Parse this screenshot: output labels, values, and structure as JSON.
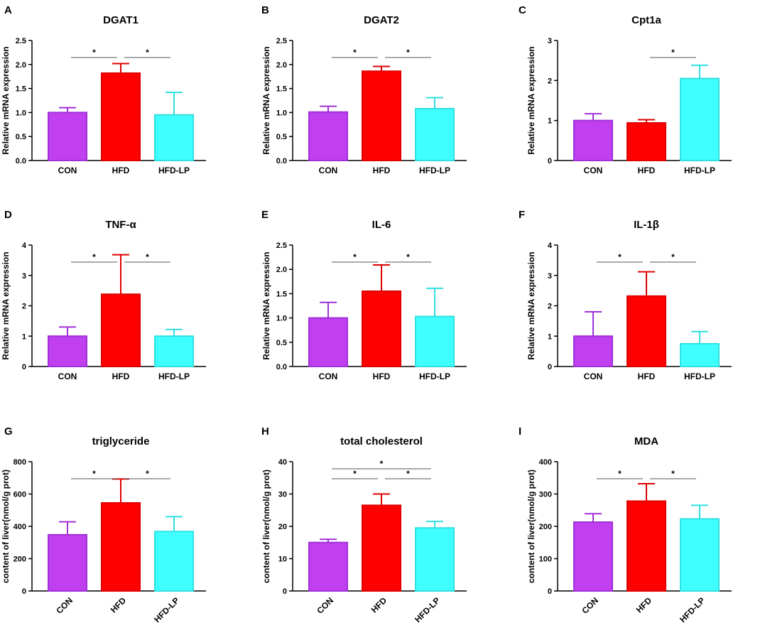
{
  "chart_data": [
    {
      "type": "bar",
      "panel": "A",
      "title": "DGAT1",
      "ylabel": "Relative mRNA expression",
      "categories": [
        "CON",
        "HFD",
        "HFD-LP"
      ],
      "values": [
        1.0,
        1.82,
        0.95
      ],
      "errors": [
        0.1,
        0.2,
        0.47
      ],
      "colors": [
        "#c040f0",
        "#ff0000",
        "#40ffff"
      ],
      "edge_colors": [
        "#a030d8",
        "#e00000",
        "#30e0e0"
      ],
      "ylim": [
        0,
        2.5
      ],
      "yticks": [
        {
          "value": 0,
          "label": "0.0"
        },
        0.5,
        {
          "value": 1,
          "label": "1.0"
        },
        1.5,
        {
          "value": 2,
          "label": "2.0"
        },
        2.5
      ],
      "significance": [
        {
          "groups": [
            "CON",
            "HFD"
          ],
          "label": "*"
        },
        {
          "groups": [
            "HFD",
            "HFD-LP"
          ],
          "label": "*"
        }
      ],
      "xlabel_rotation": 0
    },
    {
      "type": "bar",
      "panel": "B",
      "title": "DGAT2",
      "ylabel": "Relative mRNA expression",
      "categories": [
        "CON",
        "HFD",
        "HFD-LP"
      ],
      "values": [
        1.01,
        1.86,
        1.08
      ],
      "errors": [
        0.12,
        0.1,
        0.23
      ],
      "colors": [
        "#c040f0",
        "#ff0000",
        "#40ffff"
      ],
      "edge_colors": [
        "#a030d8",
        "#e00000",
        "#30e0e0"
      ],
      "ylim": [
        0,
        2.5
      ],
      "yticks": [
        {
          "value": 0,
          "label": "0.0"
        },
        0.5,
        {
          "value": 1,
          "label": "1.0"
        },
        1.5,
        {
          "value": 2,
          "label": "2.0"
        },
        2.5
      ],
      "significance": [
        {
          "groups": [
            "CON",
            "HFD"
          ],
          "label": "*"
        },
        {
          "groups": [
            "HFD",
            "HFD-LP"
          ],
          "label": "*"
        }
      ],
      "xlabel_rotation": 0
    },
    {
      "type": "bar",
      "panel": "C",
      "title": "Cpt1a",
      "ylabel": "Relative mRNA expression",
      "categories": [
        "CON",
        "HFD",
        "HFD-LP"
      ],
      "values": [
        1.0,
        0.94,
        2.05
      ],
      "errors": [
        0.17,
        0.08,
        0.33
      ],
      "colors": [
        "#c040f0",
        "#ff0000",
        "#40ffff"
      ],
      "edge_colors": [
        "#a030d8",
        "#e00000",
        "#30e0e0"
      ],
      "ylim": [
        0,
        3
      ],
      "yticks": [
        0,
        1,
        2,
        3
      ],
      "significance": [
        {
          "groups": [
            "HFD",
            "HFD-LP"
          ],
          "label": "*"
        }
      ],
      "xlabel_rotation": 0
    },
    {
      "type": "bar",
      "panel": "D",
      "title": "TNF-α",
      "ylabel": "Relative mRNA expression",
      "categories": [
        "CON",
        "HFD",
        "HFD-LP"
      ],
      "values": [
        1.0,
        2.38,
        1.0
      ],
      "errors": [
        0.3,
        1.3,
        0.22
      ],
      "colors": [
        "#c040f0",
        "#ff0000",
        "#40ffff"
      ],
      "edge_colors": [
        "#a030d8",
        "#e00000",
        "#30e0e0"
      ],
      "ylim": [
        0,
        4
      ],
      "yticks": [
        0,
        1,
        2,
        3,
        4
      ],
      "significance": [
        {
          "groups": [
            "CON",
            "HFD"
          ],
          "label": "*"
        },
        {
          "groups": [
            "HFD",
            "HFD-LP"
          ],
          "label": "*"
        }
      ],
      "xlabel_rotation": 0
    },
    {
      "type": "bar",
      "panel": "E",
      "title": "IL-6",
      "ylabel": "Relative mRNA expression",
      "categories": [
        "CON",
        "HFD",
        "HFD-LP"
      ],
      "values": [
        1.0,
        1.55,
        1.03
      ],
      "errors": [
        0.32,
        0.54,
        0.58
      ],
      "colors": [
        "#c040f0",
        "#ff0000",
        "#40ffff"
      ],
      "edge_colors": [
        "#a030d8",
        "#e00000",
        "#30e0e0"
      ],
      "ylim": [
        0,
        2.5
      ],
      "yticks": [
        {
          "value": 0,
          "label": "0.0"
        },
        0.5,
        {
          "value": 1,
          "label": "1.0"
        },
        1.5,
        {
          "value": 2,
          "label": "2.0"
        },
        2.5
      ],
      "significance": [
        {
          "groups": [
            "CON",
            "HFD"
          ],
          "label": "*"
        },
        {
          "groups": [
            "HFD",
            "HFD-LP"
          ],
          "label": "*"
        }
      ],
      "xlabel_rotation": 0
    },
    {
      "type": "bar",
      "panel": "F",
      "title": "IL-1β",
      "ylabel": "Relative mRNA expression",
      "categories": [
        "CON",
        "HFD",
        "HFD-LP"
      ],
      "values": [
        1.0,
        2.32,
        0.75
      ],
      "errors": [
        0.8,
        0.8,
        0.4
      ],
      "colors": [
        "#c040f0",
        "#ff0000",
        "#40ffff"
      ],
      "edge_colors": [
        "#a030d8",
        "#e00000",
        "#30e0e0"
      ],
      "ylim": [
        0,
        4
      ],
      "yticks": [
        0,
        1,
        2,
        3,
        4
      ],
      "significance": [
        {
          "groups": [
            "CON",
            "HFD"
          ],
          "label": "*"
        },
        {
          "groups": [
            "HFD",
            "HFD-LP"
          ],
          "label": "*"
        }
      ],
      "xlabel_rotation": 0
    },
    {
      "type": "bar",
      "panel": "G",
      "title": "triglyceride",
      "ylabel": "content of liver(nmol/g prot)",
      "categories": [
        "CON",
        "HFD",
        "HFD-LP"
      ],
      "values": [
        348,
        545,
        368
      ],
      "errors": [
        80,
        148,
        92
      ],
      "colors": [
        "#c040f0",
        "#ff0000",
        "#40ffff"
      ],
      "edge_colors": [
        "#a030d8",
        "#e00000",
        "#30e0e0"
      ],
      "ylim": [
        0,
        800
      ],
      "yticks": [
        0,
        200,
        400,
        600,
        800
      ],
      "significance": [
        {
          "groups": [
            "CON",
            "HFD"
          ],
          "label": "*"
        },
        {
          "groups": [
            "HFD",
            "HFD-LP"
          ],
          "label": "*"
        }
      ],
      "xlabel_rotation": 45
    },
    {
      "type": "bar",
      "panel": "H",
      "title": "total cholesterol",
      "ylabel": "content of liver(nmol/g prot)",
      "categories": [
        "CON",
        "HFD",
        "HFD-LP"
      ],
      "values": [
        15,
        26.5,
        19.5
      ],
      "errors": [
        1,
        3.5,
        2
      ],
      "colors": [
        "#c040f0",
        "#ff0000",
        "#40ffff"
      ],
      "edge_colors": [
        "#a030d8",
        "#e00000",
        "#30e0e0"
      ],
      "ylim": [
        0,
        40
      ],
      "yticks": [
        0,
        10,
        20,
        30,
        40
      ],
      "significance": [
        {
          "groups": [
            "CON",
            "HFD-LP"
          ],
          "label": "*"
        },
        {
          "groups": [
            "CON",
            "HFD"
          ],
          "label": "*"
        },
        {
          "groups": [
            "HFD",
            "HFD-LP"
          ],
          "label": "*"
        }
      ],
      "xlabel_rotation": 45
    },
    {
      "type": "bar",
      "panel": "I",
      "title": "MDA",
      "ylabel": "content of liver(nmol/g prot)",
      "categories": [
        "CON",
        "HFD",
        "HFD-LP"
      ],
      "values": [
        213,
        278,
        223
      ],
      "errors": [
        26,
        54,
        42
      ],
      "colors": [
        "#c040f0",
        "#ff0000",
        "#40ffff"
      ],
      "edge_colors": [
        "#a030d8",
        "#e00000",
        "#30e0e0"
      ],
      "ylim": [
        0,
        400
      ],
      "yticks": [
        0,
        100,
        200,
        300,
        400
      ],
      "significance": [
        {
          "groups": [
            "CON",
            "HFD"
          ],
          "label": "*"
        },
        {
          "groups": [
            "HFD",
            "HFD-LP"
          ],
          "label": "*"
        }
      ],
      "xlabel_rotation": 45
    }
  ]
}
